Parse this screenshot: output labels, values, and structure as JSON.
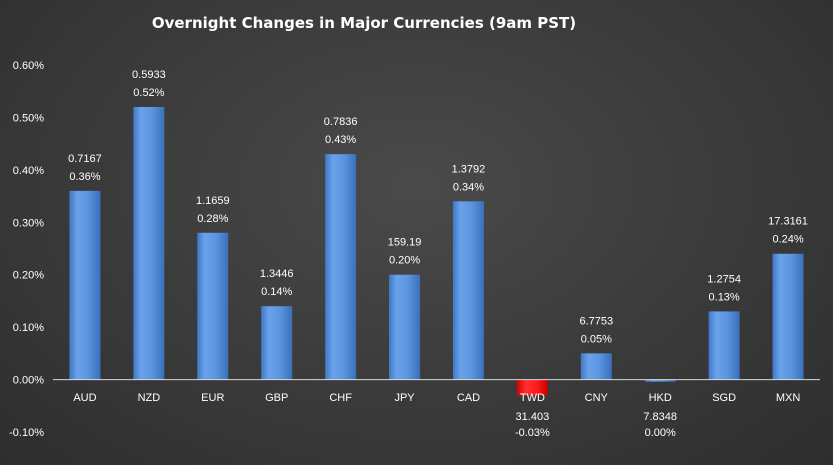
{
  "chart_data": {
    "type": "bar",
    "title": "Overnight Changes in Major Currencies (9am PST)",
    "xlabel": "",
    "ylabel": "",
    "ylim": [
      -0.1,
      0.6
    ],
    "yticks": [
      "-0.10%",
      "0.00%",
      "0.10%",
      "0.20%",
      "0.30%",
      "0.40%",
      "0.50%",
      "0.60%"
    ],
    "ytick_values": [
      -0.1,
      0.0,
      0.1,
      0.2,
      0.3,
      0.4,
      0.5,
      0.6
    ],
    "grid": false,
    "legend": "none",
    "categories": [
      "AUD",
      "NZD",
      "EUR",
      "GBP",
      "CHF",
      "JPY",
      "CAD",
      "TWD",
      "CNY",
      "HKD",
      "SGD",
      "MXN"
    ],
    "values": [
      0.36,
      0.52,
      0.28,
      0.14,
      0.43,
      0.2,
      0.34,
      -0.03,
      0.05,
      0.0,
      0.13,
      0.24
    ],
    "percent_labels": [
      "0.36%",
      "0.52%",
      "0.28%",
      "0.14%",
      "0.43%",
      "0.20%",
      "0.34%",
      "-0.03%",
      "0.05%",
      "0.00%",
      "0.13%",
      "0.24%"
    ],
    "rate_labels": [
      "0.7167",
      "0.5933",
      "1.1659",
      "1.3446",
      "0.7836",
      "159.19",
      "1.3792",
      "31.403",
      "6.7753",
      "7.8348",
      "1.2754",
      "17.3161"
    ],
    "colors": {
      "positive": "#5b95e0",
      "negative": "#ff1a1a",
      "axis": "#d9d9d9",
      "text": "#ffffff"
    }
  }
}
